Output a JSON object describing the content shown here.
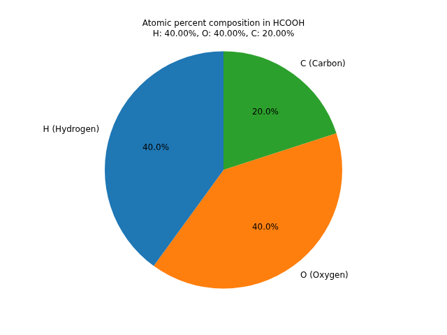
{
  "chart_data": {
    "type": "pie",
    "title": "Atomic percent composition in HCOOH",
    "subtitle": "H: 40.00%, O: 40.00%, C: 20.00%",
    "categories": [
      "H (Hydrogen)",
      "O (Oxygen)",
      "C (Carbon)"
    ],
    "values": [
      40,
      40,
      20
    ],
    "value_labels": [
      "40.0%",
      "40.0%",
      "20.0%"
    ],
    "colors": [
      "#1f77b4",
      "#ff7f0e",
      "#2ca02c"
    ],
    "data_labels": true
  }
}
